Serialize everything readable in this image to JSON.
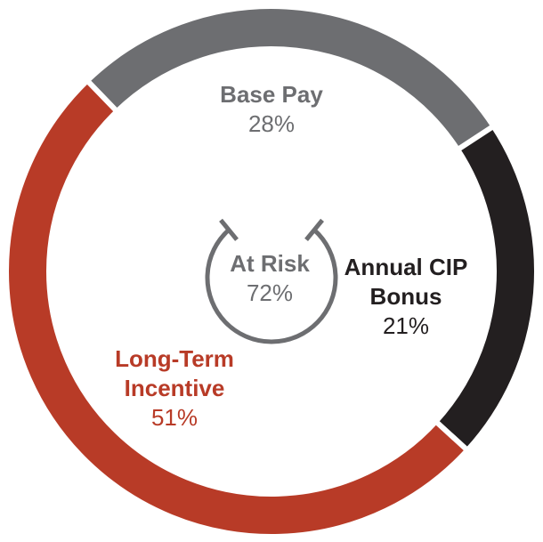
{
  "chart_data": {
    "type": "donut",
    "categories": [
      "Base Pay",
      "Annual CIP Bonus",
      "Long-Term Incentive"
    ],
    "values": [
      28,
      21,
      51
    ],
    "value_labels": [
      "28%",
      "21%",
      "51%"
    ],
    "colors": [
      "#6d6e71",
      "#231f20",
      "#b83b27"
    ],
    "center": {
      "label": "At Risk",
      "value": 72,
      "value_label": "72%"
    }
  }
}
